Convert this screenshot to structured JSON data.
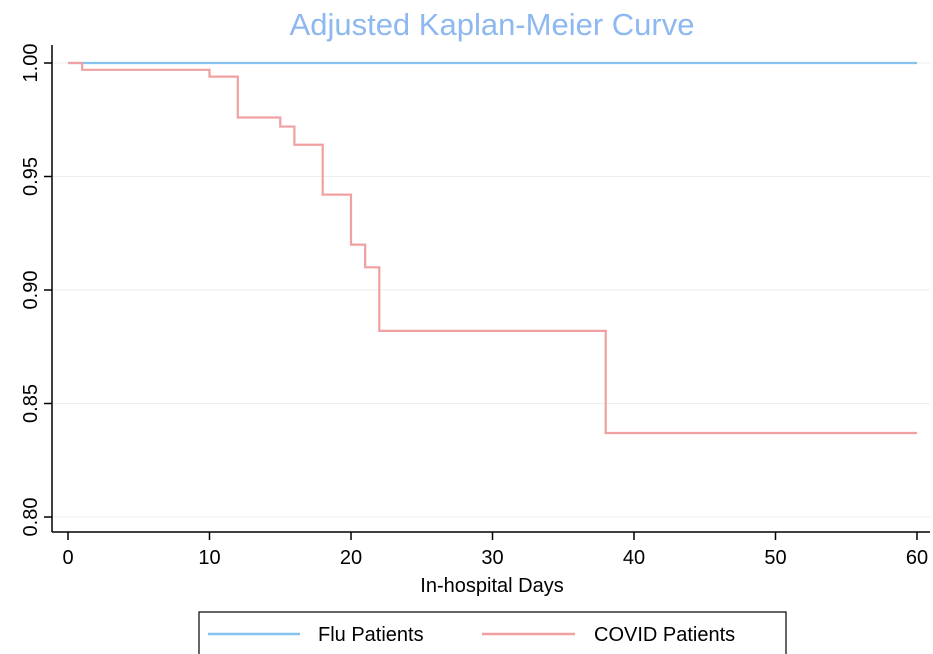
{
  "chart_data": {
    "type": "line",
    "step": true,
    "title": "Adjusted Kaplan-Meier Curve",
    "xlabel": "In-hospital Days",
    "ylabel": "",
    "xlim": [
      0,
      60
    ],
    "ylim": [
      0.8,
      1.0
    ],
    "xticks": [
      0,
      10,
      20,
      30,
      40,
      50,
      60
    ],
    "xtick_labels": [
      "0",
      "10",
      "20",
      "30",
      "40",
      "50",
      "60"
    ],
    "yticks": [
      0.8,
      0.85,
      0.9,
      0.95,
      1.0
    ],
    "ytick_labels": [
      "0.80",
      "0.85",
      "0.90",
      "0.95",
      "1.00"
    ],
    "grid": true,
    "legend_position": "bottom",
    "colors": {
      "title": "#8db8f0",
      "flu": "#86c2ee",
      "covid": "#f0a0a0",
      "grid": "#eeeeee"
    },
    "series": [
      {
        "name": "Flu Patients",
        "x": [
          0,
          60
        ],
        "y": [
          1.0,
          1.0
        ]
      },
      {
        "name": "COVID Patients",
        "x": [
          0,
          1,
          10,
          12,
          15,
          16,
          18,
          20,
          21,
          22,
          38,
          60
        ],
        "y": [
          1.0,
          0.997,
          0.994,
          0.976,
          0.972,
          0.964,
          0.942,
          0.92,
          0.91,
          0.882,
          0.837,
          0.837
        ]
      }
    ]
  }
}
